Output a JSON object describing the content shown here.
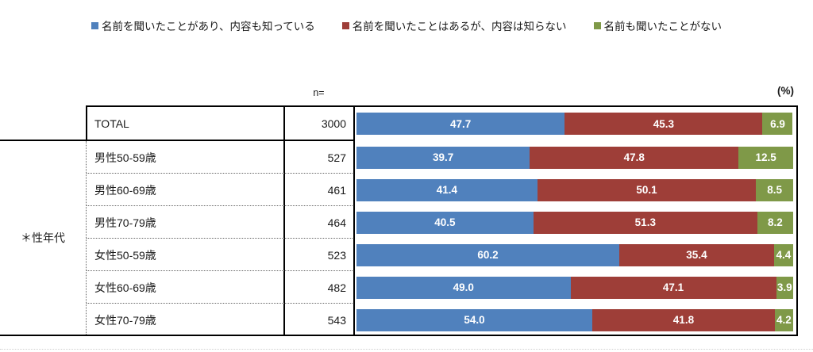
{
  "legend": {
    "items": [
      {
        "label": "名前を聞いたことがあり、内容も知っている",
        "color": "#5081bd"
      },
      {
        "label": "名前を聞いたことはあるが、内容は知らない",
        "color": "#9e3e38"
      },
      {
        "label": "名前も聞いたことがない",
        "color": "#7f9948"
      }
    ]
  },
  "header": {
    "n_label": "n=",
    "unit_label": "(%)"
  },
  "group_label": "＊性年代",
  "rows": [
    {
      "label": "TOTAL",
      "n": "3000",
      "values": [
        "47.7",
        "45.3",
        "6.9"
      ]
    },
    {
      "label": "男性50-59歳",
      "n": "527",
      "values": [
        "39.7",
        "47.8",
        "12.5"
      ]
    },
    {
      "label": "男性60-69歳",
      "n": "461",
      "values": [
        "41.4",
        "50.1",
        "8.5"
      ]
    },
    {
      "label": "男性70-79歳",
      "n": "464",
      "values": [
        "40.5",
        "51.3",
        "8.2"
      ]
    },
    {
      "label": "女性50-59歳",
      "n": "523",
      "values": [
        "60.2",
        "35.4",
        "4.4"
      ]
    },
    {
      "label": "女性60-69歳",
      "n": "482",
      "values": [
        "49.0",
        "47.1",
        "3.9"
      ]
    },
    {
      "label": "女性70-79歳",
      "n": "543",
      "values": [
        "54.0",
        "41.8",
        "4.2"
      ]
    }
  ],
  "chart_data": {
    "type": "bar",
    "stacked": true,
    "orientation": "horizontal",
    "unit": "%",
    "xlim": [
      0,
      100
    ],
    "legend_position": "top",
    "group_label": "＊性年代",
    "categories": [
      "TOTAL",
      "男性50-59歳",
      "男性60-69歳",
      "男性70-79歳",
      "女性50-59歳",
      "女性60-69歳",
      "女性70-79歳"
    ],
    "n_values": [
      3000,
      527,
      461,
      464,
      523,
      482,
      543
    ],
    "series": [
      {
        "name": "名前を聞いたことがあり、内容も知っている",
        "color": "#5081bd",
        "values": [
          47.7,
          39.7,
          41.4,
          40.5,
          60.2,
          49.0,
          54.0
        ]
      },
      {
        "name": "名前を聞いたことはあるが、内容は知らない",
        "color": "#9e3e38",
        "values": [
          45.3,
          47.8,
          50.1,
          51.3,
          35.4,
          47.1,
          41.8
        ]
      },
      {
        "name": "名前も聞いたことがない",
        "color": "#7f9948",
        "values": [
          6.9,
          12.5,
          8.5,
          8.2,
          4.4,
          3.9,
          4.2
        ]
      }
    ]
  }
}
